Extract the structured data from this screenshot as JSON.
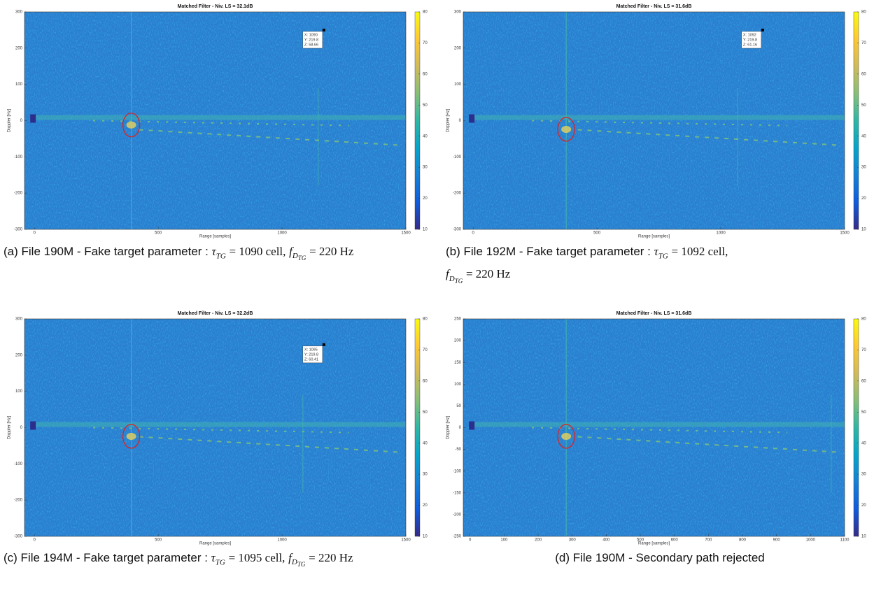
{
  "panels": [
    {
      "title": "Matched Filter - Niv. LS = 32.1dB",
      "x_label": "Range [samples]",
      "y_label": "Doppler [Hz]",
      "xlim": [
        -40,
        1500
      ],
      "xticks": [
        0,
        500,
        1000,
        1500
      ],
      "ylim": [
        -300,
        300
      ],
      "yticks": [
        300,
        200,
        100,
        0,
        -100,
        -200,
        -300
      ],
      "clim": [
        10,
        80
      ],
      "cticks": [
        80,
        70,
        60,
        50,
        40,
        30,
        20,
        10
      ],
      "datatip": [
        "X: 1090",
        "Y: 219.8",
        "Z: 58.66"
      ],
      "caption": {
        "label": "(a) File 190M - Fake target parameter :",
        "tau": "τ",
        "tau_sub": "TG",
        "tau_value": "= 1090 cell,",
        "f": "f",
        "f_sub": "D",
        "f_subsub": "TG",
        "f_value": "= 220 Hz"
      }
    },
    {
      "title": "Matched Filter - Niv. LS = 31.6dB",
      "x_label": "Range [samples]",
      "y_label": "Doppler [Hz]",
      "xlim": [
        -40,
        1500
      ],
      "xticks": [
        0,
        500,
        1000,
        1500
      ],
      "ylim": [
        -300,
        300
      ],
      "yticks": [
        300,
        200,
        100,
        0,
        -100,
        -200,
        -300
      ],
      "clim": [
        10,
        80
      ],
      "cticks": [
        80,
        70,
        60,
        50,
        40,
        30,
        20,
        10
      ],
      "datatip": [
        "X: 1092",
        "Y: 219.8",
        "Z: 61.16"
      ],
      "caption": {
        "label": "(b) File 192M - Fake target parameter :",
        "tau": "τ",
        "tau_sub": "TG",
        "tau_value": "= 1092 cell,",
        "f": "f",
        "f_sub": "D",
        "f_subsub": "TG",
        "f_value": "= 220 Hz"
      }
    },
    {
      "title": "Matched Filter - Niv. LS = 32.2dB",
      "x_label": "Range [samples]",
      "y_label": "Doppler [Hz]",
      "xlim": [
        -40,
        1500
      ],
      "xticks": [
        0,
        500,
        1000,
        1500
      ],
      "ylim": [
        -300,
        300
      ],
      "yticks": [
        300,
        200,
        100,
        0,
        -100,
        -200,
        -300
      ],
      "clim": [
        10,
        80
      ],
      "cticks": [
        80,
        70,
        60,
        50,
        40,
        30,
        20,
        10
      ],
      "datatip": [
        "X: 1095",
        "Y: 219.8",
        "Z: 60.41"
      ],
      "caption": {
        "label": "(c) File 194M - Fake target parameter :",
        "tau": "τ",
        "tau_sub": "TG",
        "tau_value": "= 1095 cell,",
        "f": "f",
        "f_sub": "D",
        "f_subsub": "TG",
        "f_value": "= 220 Hz"
      }
    },
    {
      "title": "Matched Filter - Niv. LS = 31.6dB",
      "x_label": "Range [samples]",
      "y_label": "Doppler [Hz]",
      "xlim": [
        -20,
        1100
      ],
      "xticks": [
        0,
        100,
        200,
        300,
        400,
        500,
        600,
        700,
        800,
        900,
        1000,
        1100
      ],
      "ylim": [
        -250,
        250
      ],
      "yticks": [
        250,
        200,
        150,
        100,
        50,
        0,
        -50,
        -100,
        -150,
        -200,
        -250
      ],
      "clim": [
        10,
        80
      ],
      "cticks": [
        80,
        70,
        60,
        50,
        40,
        30,
        20,
        10
      ],
      "caption": {
        "label": "(d) File 190M - Secondary path rejected"
      }
    }
  ]
}
